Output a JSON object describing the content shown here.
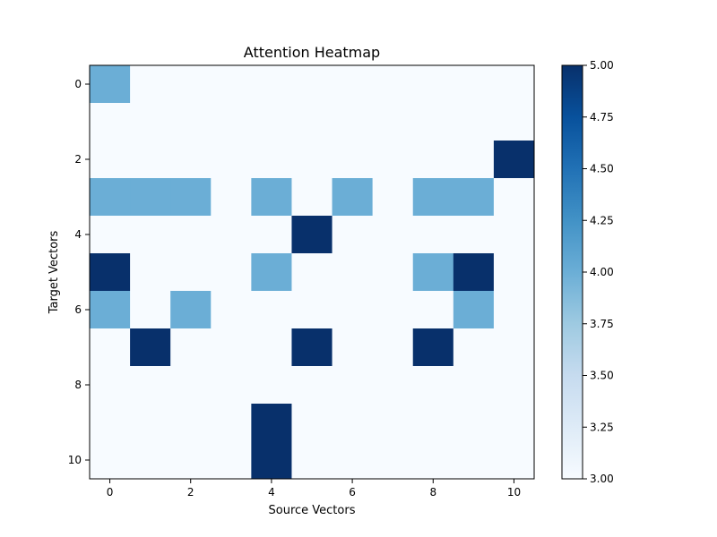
{
  "chart_data": {
    "type": "heatmap",
    "title": "Attention Heatmap",
    "xlabel": "Source Vectors",
    "ylabel": "Target Vectors",
    "x_ticks": [
      0,
      2,
      4,
      6,
      8,
      10
    ],
    "y_ticks": [
      0,
      2,
      4,
      6,
      8,
      10
    ],
    "x_tick_labels": [
      "0",
      "2",
      "4",
      "6",
      "8",
      "10"
    ],
    "y_tick_labels": [
      "0",
      "2",
      "4",
      "6",
      "8",
      "10"
    ],
    "colormap": "Blues",
    "color_range": [
      3.0,
      5.0
    ],
    "colorbar_ticks": [
      3.0,
      3.25,
      3.5,
      3.75,
      4.0,
      4.25,
      4.5,
      4.75,
      5.0
    ],
    "colorbar_tick_labels": [
      "3.00",
      "3.25",
      "3.50",
      "3.75",
      "4.00",
      "4.25",
      "4.50",
      "4.75",
      "5.00"
    ],
    "matrix": [
      [
        4,
        3,
        3,
        3,
        3,
        3,
        3,
        3,
        3,
        3,
        3
      ],
      [
        3,
        3,
        3,
        3,
        3,
        3,
        3,
        3,
        3,
        3,
        3
      ],
      [
        3,
        3,
        3,
        3,
        3,
        3,
        3,
        3,
        3,
        3,
        5
      ],
      [
        4,
        4,
        4,
        3,
        4,
        3,
        4,
        3,
        4,
        4,
        3
      ],
      [
        3,
        3,
        3,
        3,
        3,
        5,
        3,
        3,
        3,
        3,
        3
      ],
      [
        5,
        3,
        3,
        3,
        4,
        3,
        3,
        3,
        4,
        5,
        3
      ],
      [
        4,
        3,
        4,
        3,
        3,
        3,
        3,
        3,
        3,
        4,
        3
      ],
      [
        3,
        5,
        3,
        3,
        3,
        5,
        3,
        3,
        5,
        3,
        3
      ],
      [
        3,
        3,
        3,
        3,
        3,
        3,
        3,
        3,
        3,
        3,
        3
      ],
      [
        3,
        3,
        3,
        3,
        5,
        3,
        3,
        3,
        3,
        3,
        3
      ],
      [
        3,
        3,
        3,
        3,
        5,
        3,
        3,
        3,
        3,
        3,
        3
      ]
    ]
  }
}
